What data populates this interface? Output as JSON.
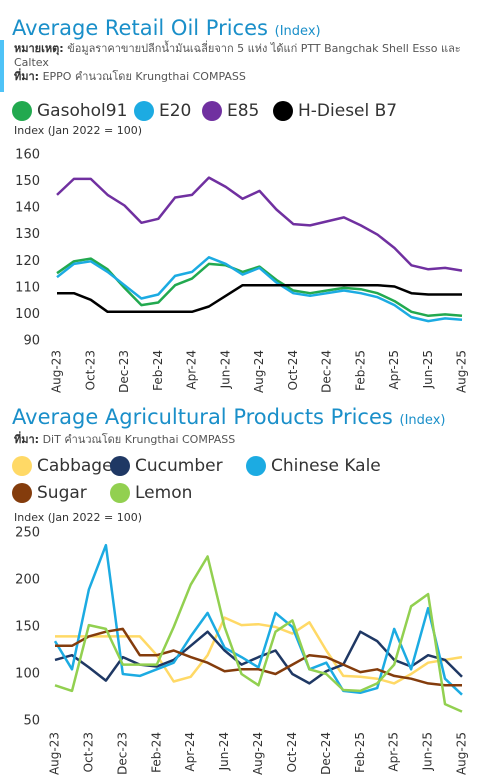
{
  "chart_data": [
    {
      "type": "line",
      "title": "Average Retail Oil Prices",
      "title_note": "(Index)",
      "notes": [
        {
          "label": "หมายเหตุ:",
          "text": "ข้อมูลราคาขายปลีกน้ำมันเฉลี่ยจาก 5 แห่ง ได้แก่ PTT Bangchak Shell Esso และ Caltex"
        },
        {
          "label": "ที่มา:",
          "text": "EPPO คำนวณโดย Krungthai COMPASS"
        }
      ],
      "y_axis_label": "Index (Jan 2022 = 100)",
      "categories": [
        "Aug-23",
        null,
        "Oct-23",
        null,
        "Dec-23",
        null,
        "Feb-24",
        null,
        "Apr-24",
        null,
        "Jun-24",
        null,
        "Aug-24",
        null,
        "Oct-24",
        null,
        "Dec-24",
        null,
        "Feb-25",
        null,
        "Apr-25",
        null,
        "Jun-25",
        null,
        "Aug-25"
      ],
      "series": [
        {
          "name": "Gasohol91",
          "color": "#22a94f",
          "values": [
            115.5,
            120,
            121,
            117,
            110,
            103.5,
            104.5,
            111,
            113.5,
            119,
            118.5,
            116,
            118,
            113,
            109,
            108,
            109,
            110,
            109.5,
            108,
            105,
            101,
            99.5,
            100,
            99.5
          ]
        },
        {
          "name": "E20",
          "color": "#1cabe2",
          "values": [
            114,
            119,
            120,
            116,
            111,
            106,
            107.5,
            114.5,
            116,
            121.5,
            119,
            115,
            117.5,
            112,
            108,
            107,
            108,
            109,
            108,
            106.5,
            103.5,
            99,
            97.5,
            98.5,
            98
          ]
        },
        {
          "name": "E85",
          "color": "#7030a0",
          "values": [
            145,
            151,
            151,
            145,
            141,
            134.5,
            136,
            144,
            145,
            151.5,
            148,
            143.5,
            146.5,
            139.5,
            134,
            133.5,
            135,
            136.5,
            133.5,
            130,
            125,
            118.5,
            117,
            117.5,
            116.5
          ]
        },
        {
          "name": "H-Diesel B7",
          "color": "#000000",
          "values": [
            108,
            108,
            105.5,
            101,
            101,
            101,
            101,
            101,
            101,
            103,
            107,
            111,
            111,
            111,
            111,
            111,
            111,
            111,
            111,
            111,
            110.5,
            108,
            107.5,
            107.5,
            107.5
          ]
        }
      ],
      "ylim": [
        90,
        160
      ],
      "yticks": [
        90,
        100,
        110,
        120,
        130,
        140,
        150,
        160
      ],
      "grid": false,
      "legend_position": "top"
    },
    {
      "type": "line",
      "title": "Average Agricultural Products Prices",
      "title_note": "(Index)",
      "notes": [
        {
          "label": "ที่มา:",
          "text": "DiT คำนวณโดย Krungthai COMPASS"
        }
      ],
      "y_axis_label": "Index (Jan 2022 = 100)",
      "categories": [
        "Aug-23",
        null,
        "Oct-23",
        null,
        "Dec-23",
        null,
        "Feb-24",
        null,
        "Apr-24",
        null,
        "Jun-24",
        null,
        "Aug-24",
        null,
        "Oct-24",
        null,
        "Dec-24",
        null,
        "Feb-25",
        null,
        "Apr-25",
        null,
        "Jun-25",
        null,
        "Aug-25"
      ],
      "series": [
        {
          "name": "Cabbage",
          "color": "#ffd966",
          "values": [
            140,
            140,
            140,
            140,
            140,
            140,
            120,
            92,
            97,
            120,
            160,
            152,
            153,
            150,
            143,
            155,
            125,
            98,
            97,
            95,
            90,
            100,
            112,
            115,
            118
          ]
        },
        {
          "name": "Cucumber",
          "color": "#1f3864",
          "values": [
            115,
            120,
            107,
            93,
            118,
            110,
            108,
            115,
            130,
            145,
            125,
            110,
            118,
            125,
            100,
            90,
            103,
            110,
            145,
            135,
            115,
            108,
            120,
            115,
            97
          ]
        },
        {
          "name": "Chinese Kale",
          "color": "#1cabe2",
          "values": [
            135,
            105,
            190,
            237,
            100,
            98,
            105,
            112,
            140,
            165,
            128,
            118,
            107,
            165,
            150,
            105,
            112,
            82,
            80,
            85,
            148,
            105,
            170,
            95,
            78
          ]
        },
        {
          "name": "Sugar",
          "color": "#843c0c",
          "values": [
            130,
            130,
            140,
            145,
            148,
            120,
            120,
            125,
            118,
            112,
            103,
            105,
            105,
            100,
            110,
            120,
            118,
            110,
            102,
            105,
            98,
            95,
            90,
            88,
            88
          ]
        },
        {
          "name": "Lemon",
          "color": "#92d050",
          "values": [
            88,
            82,
            152,
            148,
            110,
            110,
            110,
            150,
            195,
            225,
            150,
            100,
            88,
            145,
            157,
            105,
            100,
            83,
            82,
            90,
            110,
            172,
            185,
            68,
            60
          ]
        }
      ],
      "ylim": [
        50,
        250
      ],
      "yticks": [
        50,
        100,
        150,
        200,
        250
      ],
      "grid": false,
      "legend_position": "top"
    }
  ]
}
